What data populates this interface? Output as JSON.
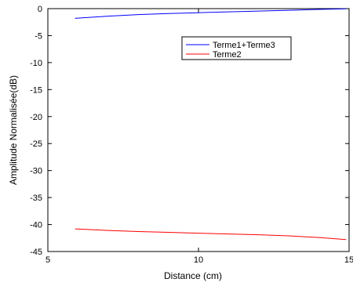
{
  "chart_data": {
    "type": "line",
    "title": "",
    "xlabel": "Distance (cm)",
    "ylabel": "Amplitude Normalisée(dB)",
    "xlim": [
      5,
      15
    ],
    "ylim": [
      -45,
      0
    ],
    "xticks": [
      5,
      10,
      15
    ],
    "yticks": [
      0,
      -5,
      -10,
      -15,
      -20,
      -25,
      -30,
      -35,
      -40,
      -45
    ],
    "grid": false,
    "legend_position": "top-right",
    "series": [
      {
        "name": "Terme1+Terme3",
        "color": "#0000ff",
        "x": [
          5.9,
          7,
          8,
          9,
          10,
          11,
          12,
          13,
          14,
          14.9
        ],
        "y": [
          -1.8,
          -1.4,
          -1.1,
          -0.9,
          -0.75,
          -0.6,
          -0.45,
          -0.3,
          -0.15,
          -0.05
        ]
      },
      {
        "name": "Terme2",
        "color": "#ff0000",
        "x": [
          5.9,
          7,
          8,
          9,
          10,
          11,
          12,
          13,
          14,
          14.9
        ],
        "y": [
          -40.8,
          -41.1,
          -41.3,
          -41.45,
          -41.6,
          -41.75,
          -41.9,
          -42.1,
          -42.4,
          -42.8
        ]
      }
    ]
  }
}
